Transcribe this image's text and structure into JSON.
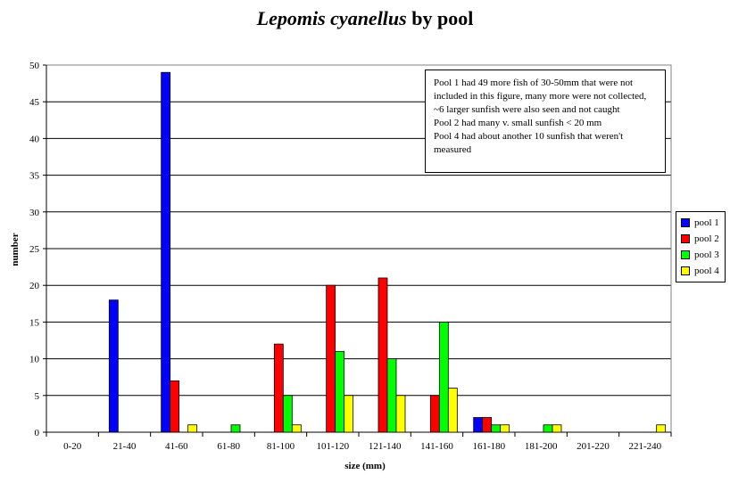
{
  "chart_data": {
    "type": "bar",
    "title_italic": "Lepomis cyanellus",
    "title_rest": "by pool",
    "xlabel": "size (mm)",
    "ylabel": "number",
    "ylim": [
      0,
      50
    ],
    "yticks": [
      0,
      5,
      10,
      15,
      20,
      25,
      30,
      35,
      40,
      45,
      50
    ],
    "grid": "horizontal",
    "legend_position": "right",
    "categories": [
      "0-20",
      "21-40",
      "41-60",
      "61-80",
      "81-100",
      "101-120",
      "121-140",
      "141-160",
      "161-180",
      "181-200",
      "201-220",
      "221-240"
    ],
    "series": [
      {
        "name": "pool 1",
        "color": "#0000ff",
        "values": [
          0,
          18,
          49,
          0,
          0,
          0,
          0,
          0,
          2,
          0,
          0,
          0
        ]
      },
      {
        "name": "pool 2",
        "color": "#ff0000",
        "values": [
          0,
          0,
          7,
          0,
          12,
          20,
          21,
          5,
          2,
          0,
          0,
          0
        ]
      },
      {
        "name": "pool 3",
        "color": "#00ff00",
        "values": [
          0,
          0,
          0,
          1,
          5,
          11,
          10,
          15,
          1,
          1,
          0,
          0
        ]
      },
      {
        "name": "pool 4",
        "color": "#ffff00",
        "values": [
          0,
          0,
          1,
          0,
          1,
          5,
          5,
          6,
          1,
          1,
          0,
          1
        ]
      }
    ],
    "annotation_lines": [
      "Pool 1 had 49 more fish of 30-50mm that were not",
      "included in this figure, many more were not collected,",
      "~6 larger sunfish were also seen and not caught",
      "Pool 2 had many v. small sunfish < 20 mm",
      "Pool 4 had about another 10 sunfish that weren't",
      "measured"
    ]
  }
}
